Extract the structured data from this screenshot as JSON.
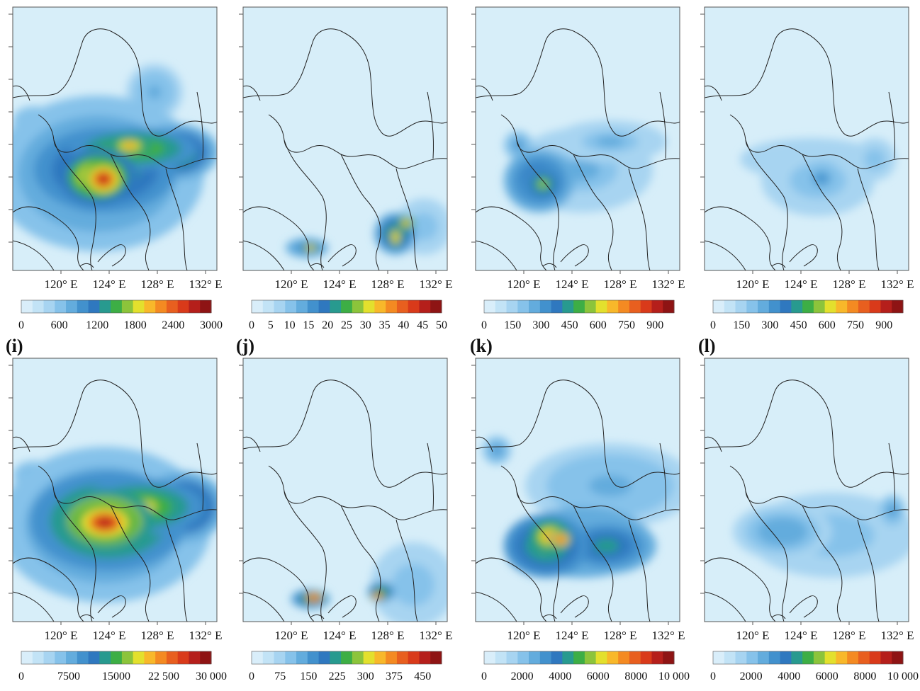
{
  "colors": {
    "scale": [
      "#d9eefa",
      "#c2e3f6",
      "#a7d4f1",
      "#86c2ea",
      "#63acdd",
      "#4291cd",
      "#2f78bf",
      "#289a8f",
      "#3dae45",
      "#8cc43b",
      "#e3e02d",
      "#f8b82a",
      "#f48a22",
      "#e85f1f",
      "#d93a1a",
      "#b51f1b",
      "#8e1414"
    ],
    "ocean": "#d7eef9",
    "border": "#222222"
  },
  "longitude_ticks": [
    "120° E",
    "124° E",
    "128° E",
    "132° E"
  ],
  "panels": [
    {
      "label": "(i)",
      "colorbar_ticks": [
        "0",
        "7500",
        "15000",
        "22 500",
        "30 000"
      ],
      "max": 30000
    },
    {
      "label": "(j)",
      "colorbar_ticks": [
        "0",
        "75",
        "150",
        "225",
        "300",
        "375",
        "450"
      ],
      "max": 500
    },
    {
      "label": "(k)",
      "colorbar_ticks": [
        "0",
        "2000",
        "4000",
        "6000",
        "8000",
        "10 000"
      ],
      "max": 10000
    },
    {
      "label": "(l)",
      "colorbar_ticks": [
        "0",
        "2000",
        "4000",
        "6000",
        "8000",
        "10 000"
      ],
      "max": 10000
    }
  ],
  "top_panels": [
    {
      "colorbar_ticks": [
        "0",
        "600",
        "1200",
        "1800",
        "2400",
        "3000"
      ],
      "max": 3000
    },
    {
      "colorbar_ticks": [
        "0",
        "5",
        "10",
        "15",
        "20",
        "25",
        "30",
        "35",
        "40",
        "45",
        "50"
      ],
      "max": 50
    },
    {
      "colorbar_ticks": [
        "0",
        "150",
        "300",
        "450",
        "600",
        "750",
        "900"
      ],
      "max": 1000
    },
    {
      "colorbar_ticks": [
        "0",
        "150",
        "300",
        "450",
        "600",
        "750",
        "900"
      ],
      "max": 1000
    }
  ]
}
